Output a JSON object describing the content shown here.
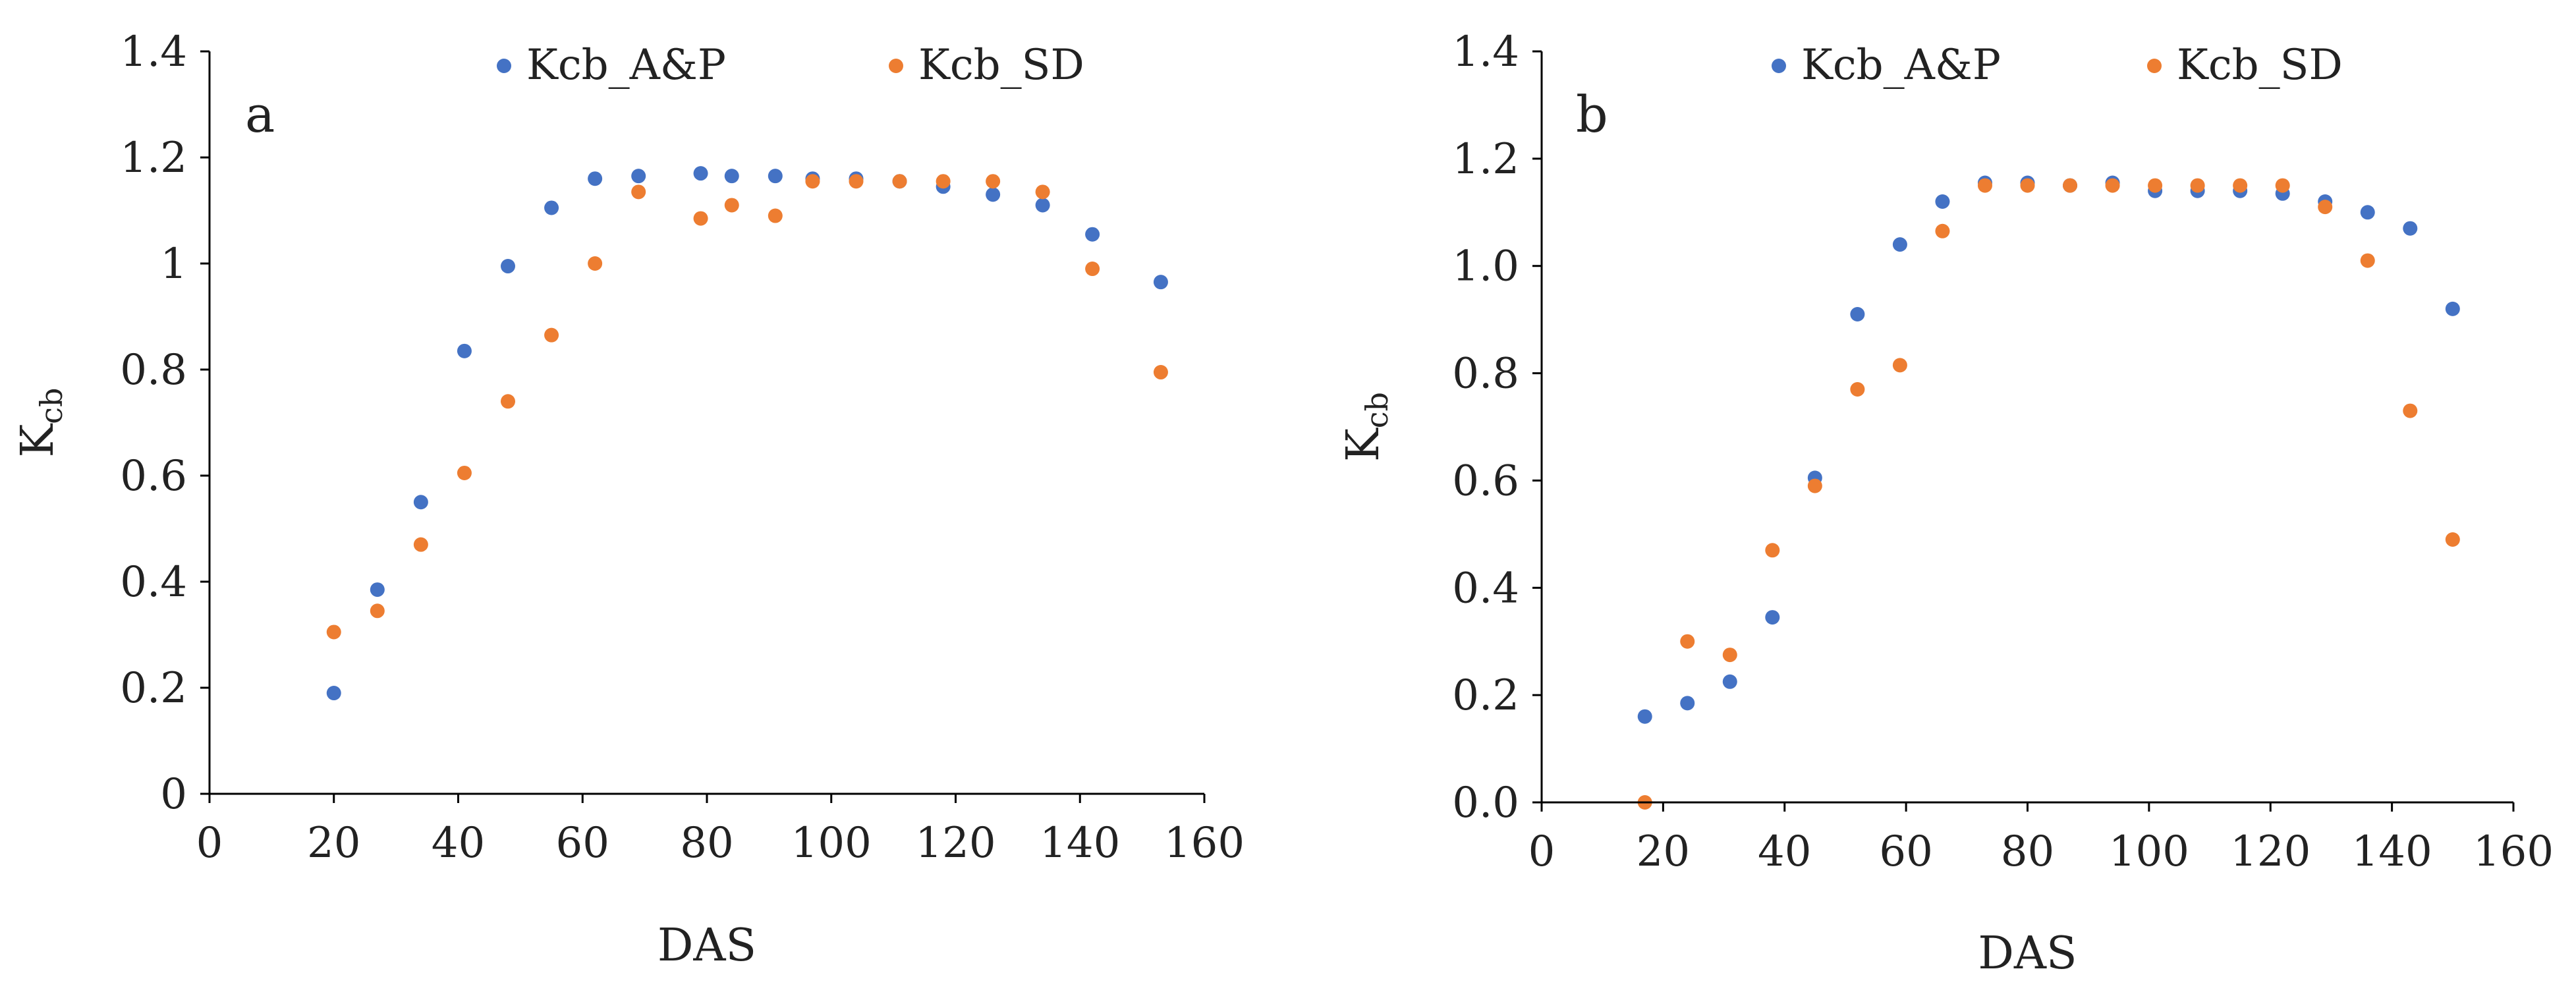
{
  "colors": {
    "series_a": "#4472C4",
    "series_b": "#ED7D31",
    "axis": "#000000"
  },
  "chart_data": [
    {
      "type": "scatter",
      "panel_label": "a",
      "title": "",
      "xlabel": "DAS",
      "ylabel_main": "K",
      "ylabel_sub": "cb",
      "xlim": [
        0,
        160
      ],
      "ylim": [
        0,
        1.4
      ],
      "x_ticks": [
        "0",
        "20",
        "40",
        "60",
        "80",
        "100",
        "120",
        "140",
        "160"
      ],
      "y_ticks": [
        "0",
        "0.2",
        "0.4",
        "0.6",
        "0.8",
        "1",
        "1.2",
        "1.4"
      ],
      "grid": false,
      "legend_position": "top",
      "series": [
        {
          "name": "Kcb_A&P",
          "color": "#4472C4",
          "points": [
            [
              20,
              0.19
            ],
            [
              27,
              0.385
            ],
            [
              34,
              0.55
            ],
            [
              41,
              0.835
            ],
            [
              48,
              0.995
            ],
            [
              55,
              1.105
            ],
            [
              62,
              1.16
            ],
            [
              69,
              1.165
            ],
            [
              79,
              1.17
            ],
            [
              84,
              1.165
            ],
            [
              91,
              1.165
            ],
            [
              97,
              1.16
            ],
            [
              104,
              1.16
            ],
            [
              111,
              1.155
            ],
            [
              118,
              1.145
            ],
            [
              126,
              1.13
            ],
            [
              134,
              1.11
            ],
            [
              142,
              1.055
            ],
            [
              153,
              0.965
            ]
          ]
        },
        {
          "name": "Kcb_SD",
          "color": "#ED7D31",
          "points": [
            [
              20,
              0.305
            ],
            [
              27,
              0.345
            ],
            [
              34,
              0.47
            ],
            [
              41,
              0.605
            ],
            [
              48,
              0.74
            ],
            [
              55,
              0.865
            ],
            [
              62,
              1.0
            ],
            [
              69,
              1.135
            ],
            [
              79,
              1.085
            ],
            [
              84,
              1.11
            ],
            [
              91,
              1.09
            ],
            [
              97,
              1.155
            ],
            [
              104,
              1.155
            ],
            [
              111,
              1.155
            ],
            [
              118,
              1.155
            ],
            [
              126,
              1.155
            ],
            [
              134,
              1.135
            ],
            [
              142,
              0.99
            ],
            [
              153,
              0.795
            ]
          ]
        }
      ]
    },
    {
      "type": "scatter",
      "panel_label": "b",
      "title": "",
      "xlabel": "DAS",
      "ylabel_main": "K",
      "ylabel_sub": "cb",
      "xlim": [
        0,
        160
      ],
      "ylim": [
        0,
        1.4
      ],
      "x_ticks": [
        "0",
        "20",
        "40",
        "60",
        "80",
        "100",
        "120",
        "140",
        "160"
      ],
      "y_ticks": [
        "0.0",
        "0.2",
        "0.4",
        "0.6",
        "0.8",
        "1.0",
        "1.2",
        "1.4"
      ],
      "grid": false,
      "legend_position": "top",
      "series": [
        {
          "name": "Kcb_A&P",
          "color": "#4472C4",
          "points": [
            [
              17,
              0.16
            ],
            [
              24,
              0.185
            ],
            [
              31,
              0.225
            ],
            [
              38,
              0.345
            ],
            [
              45,
              0.605
            ],
            [
              52,
              0.91
            ],
            [
              59,
              1.04
            ],
            [
              66,
              1.12
            ],
            [
              73,
              1.155
            ],
            [
              80,
              1.155
            ],
            [
              87,
              1.15
            ],
            [
              94,
              1.155
            ],
            [
              101,
              1.14
            ],
            [
              108,
              1.14
            ],
            [
              115,
              1.14
            ],
            [
              122,
              1.135
            ],
            [
              129,
              1.12
            ],
            [
              136,
              1.1
            ],
            [
              143,
              1.07
            ],
            [
              150,
              0.92
            ]
          ]
        },
        {
          "name": "Kcb_SD",
          "color": "#ED7D31",
          "points": [
            [
              17,
              0.0
            ],
            [
              24,
              0.3
            ],
            [
              31,
              0.275
            ],
            [
              38,
              0.47
            ],
            [
              45,
              0.59
            ],
            [
              52,
              0.77
            ],
            [
              59,
              0.815
            ],
            [
              66,
              1.065
            ],
            [
              73,
              1.15
            ],
            [
              80,
              1.15
            ],
            [
              87,
              1.15
            ],
            [
              94,
              1.15
            ],
            [
              101,
              1.15
            ],
            [
              108,
              1.15
            ],
            [
              115,
              1.15
            ],
            [
              122,
              1.15
            ],
            [
              129,
              1.11
            ],
            [
              136,
              1.01
            ],
            [
              143,
              0.73
            ],
            [
              150,
              0.49
            ]
          ]
        }
      ]
    }
  ]
}
